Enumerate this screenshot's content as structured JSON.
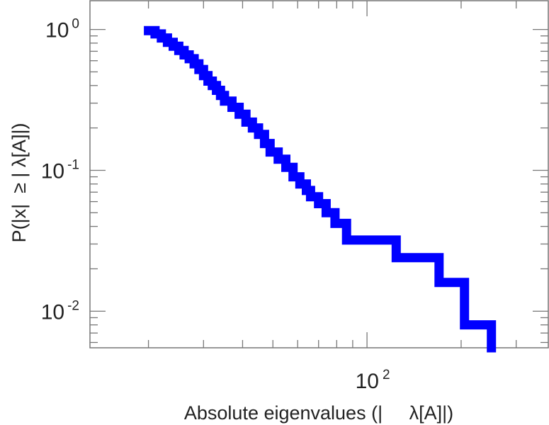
{
  "chart_data": {
    "type": "line",
    "step": true,
    "title": "",
    "xlabel": "Absolute eigenvalues (|     λ[A]|)",
    "ylabel": "P(|x|  ≥ | λ[A]|)",
    "xscale": "log",
    "yscale": "log",
    "xlim": [
      13,
      380
    ],
    "ylim": [
      0.0055,
      1.6
    ],
    "grid": false,
    "legend": "none",
    "x_ticks": [
      {
        "value": 100,
        "base": "10",
        "exp": "2"
      }
    ],
    "y_ticks": [
      {
        "value": 1,
        "base": "10",
        "exp": "0"
      },
      {
        "value": 0.1,
        "base": "10",
        "exp": "-1"
      },
      {
        "value": 0.01,
        "base": "10",
        "exp": "-2"
      }
    ],
    "series": [
      {
        "color": "#0000ff",
        "x": [
          20,
          21,
          22,
          23,
          24,
          25,
          26,
          27,
          28,
          29,
          30,
          31,
          32,
          33,
          34,
          35,
          37,
          39,
          41,
          43,
          45,
          47,
          49,
          52,
          55,
          58,
          61,
          64,
          66,
          70,
          74,
          79,
          86,
          124,
          170,
          205,
          250
        ],
        "y": [
          0.98,
          0.93,
          0.87,
          0.81,
          0.76,
          0.71,
          0.66,
          0.62,
          0.57,
          0.52,
          0.47,
          0.43,
          0.4,
          0.37,
          0.34,
          0.31,
          0.28,
          0.25,
          0.22,
          0.2,
          0.18,
          0.155,
          0.135,
          0.12,
          0.105,
          0.09,
          0.08,
          0.072,
          0.065,
          0.058,
          0.05,
          0.042,
          0.032,
          0.024,
          0.016,
          0.008,
          0.0055
        ]
      }
    ]
  }
}
